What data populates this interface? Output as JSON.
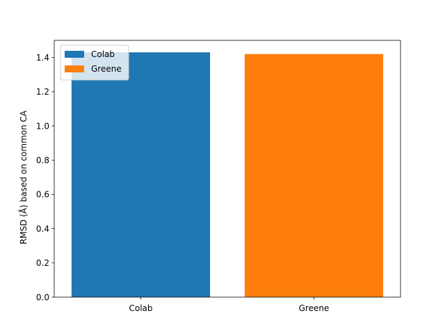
{
  "chart_data": {
    "type": "bar",
    "title": "",
    "xlabel": "",
    "ylabel": "RMSD (Å) based on common CA",
    "categories": [
      "Colab",
      "Greene"
    ],
    "series": [
      {
        "name": "Colab",
        "values": [
          1.43,
          null
        ],
        "color": "#1f77b4"
      },
      {
        "name": "Greene",
        "values": [
          null,
          1.42
        ],
        "color": "#ff7f0e"
      }
    ],
    "ylim": [
      0,
      1.5
    ],
    "yticks": [
      0.0,
      0.2,
      0.4,
      0.6,
      0.8,
      1.0,
      1.2,
      1.4
    ],
    "ytick_labels": [
      "0.0",
      "0.2",
      "0.4",
      "0.6",
      "0.8",
      "1.0",
      "1.2",
      "1.4"
    ],
    "grid": false,
    "legend": {
      "placement": "upper-left",
      "entries": [
        {
          "label": "Colab",
          "color": "#1f77b4"
        },
        {
          "label": "Greene",
          "color": "#ff7f0e"
        }
      ]
    }
  }
}
